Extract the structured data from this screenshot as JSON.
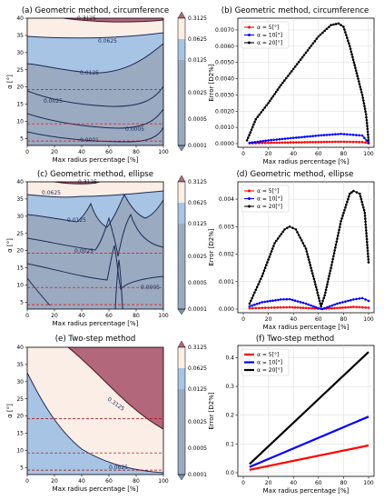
{
  "figure": {
    "panels": [
      {
        "id": "a",
        "title": "(a) Geometric method, circumference",
        "xlabel": "Max radius percentage [%]",
        "ylabel": "α [°]"
      },
      {
        "id": "b",
        "title": "(b) Geometric method, circumference",
        "xlabel": "Max radius percentage [%]",
        "ylabel": "Error [D2%]"
      },
      {
        "id": "c",
        "title": "(c) Geometric method, ellipse",
        "xlabel": "Max radius percentage [%]",
        "ylabel": "α [°]"
      },
      {
        "id": "d",
        "title": "(d) Geometric method, ellipse",
        "xlabel": "Max radius percentage [%]",
        "ylabel": "Error [D2%]"
      },
      {
        "id": "e",
        "title": "(e) Two-step method",
        "xlabel": "Max radius percentage [%]",
        "ylabel": "α [°]"
      },
      {
        "id": "f",
        "title": "(f) Two-step method",
        "xlabel": "Max radius percentage [%]",
        "ylabel": "Error [D2%]"
      }
    ]
  },
  "chart_data": [
    {
      "panel": "a",
      "type": "contour",
      "x_range": [
        0,
        100
      ],
      "y_range": [
        3,
        40
      ],
      "xticks": [
        0,
        20,
        40,
        60,
        80,
        100
      ],
      "yticks": [
        5,
        10,
        15,
        20,
        25,
        30,
        35,
        40
      ],
      "levels": [
        0.0001,
        0.0005,
        0.0025,
        0.0125,
        0.0625,
        0.3125
      ],
      "colorbar_ticks": [
        "0.3125",
        "0.0625",
        "0.0125",
        "0.0025",
        "0.0005",
        "0.0001"
      ],
      "contour_labels": [
        "0.3125",
        "0.0625",
        "0.0125",
        "0.0025",
        "0.0005",
        "0.0001"
      ],
      "reference_lines_alpha": [
        5,
        10,
        20
      ]
    },
    {
      "panel": "b",
      "type": "line",
      "x_range": [
        0,
        100
      ],
      "ylim": [
        0,
        0.0075
      ],
      "xticks": [
        0,
        20,
        40,
        60,
        80,
        100
      ],
      "yticks": [
        "0.0000",
        "0.0010",
        "0.0020",
        "0.0030",
        "0.0040",
        "0.0050",
        "0.0060",
        "0.0070"
      ],
      "ytick_values": [
        0,
        0.001,
        0.002,
        0.003,
        0.004,
        0.005,
        0.006,
        0.007
      ],
      "legend_position": "upper-left",
      "grid": true,
      "series": [
        {
          "name": "α = 5[°]",
          "color": "#ff0000",
          "x": [
            5,
            20,
            40,
            60,
            78,
            95,
            100
          ],
          "y": [
            2e-05,
            5e-05,
            8e-05,
            0.0001,
            0.00012,
            0.0001,
            2e-05
          ]
        },
        {
          "name": "α = 10[°]",
          "color": "#0000ff",
          "x": [
            5,
            20,
            40,
            60,
            78,
            95,
            100
          ],
          "y": [
            5e-05,
            0.0002,
            0.00035,
            0.0005,
            0.0006,
            0.0005,
            5e-05
          ]
        },
        {
          "name": "α = 20[°]",
          "color": "#000000",
          "x": [
            3,
            10,
            20,
            30,
            40,
            50,
            60,
            70,
            76,
            80,
            85,
            90,
            95,
            98,
            100
          ],
          "y": [
            0.0002,
            0.0015,
            0.0025,
            0.0036,
            0.0046,
            0.0056,
            0.0066,
            0.0073,
            0.0074,
            0.0072,
            0.006,
            0.0045,
            0.003,
            0.0018,
            0.0002
          ]
        }
      ]
    },
    {
      "panel": "c",
      "type": "contour",
      "x_range": [
        0,
        100
      ],
      "y_range": [
        3,
        40
      ],
      "xticks": [
        0,
        20,
        40,
        60,
        80,
        100
      ],
      "yticks": [
        5,
        10,
        15,
        20,
        25,
        30,
        35,
        40
      ],
      "levels": [
        0.0001,
        0.0005,
        0.0025,
        0.0125,
        0.0625,
        0.3125
      ],
      "colorbar_ticks": [
        "0.3125",
        "0.0625",
        "0.0125",
        "0.0025",
        "0.0005",
        "0.0001"
      ],
      "contour_labels": [
        "0.3125",
        "0.0625",
        "0.0125",
        "0.0025",
        "0.0005"
      ],
      "reference_lines_alpha": [
        5,
        10,
        20
      ]
    },
    {
      "panel": "d",
      "type": "line",
      "x_range": [
        0,
        100
      ],
      "ylim": [
        0,
        0.0045
      ],
      "xticks": [
        0,
        20,
        40,
        60,
        80,
        100
      ],
      "yticks": [
        "0.000",
        "0.001",
        "0.002",
        "0.003",
        "0.004"
      ],
      "ytick_values": [
        0,
        0.001,
        0.002,
        0.003,
        0.004
      ],
      "legend_position": "upper-left",
      "grid": true,
      "series": [
        {
          "name": "α = 5[°]",
          "color": "#ff0000",
          "x": [
            5,
            20,
            37,
            50,
            62,
            75,
            88,
            100
          ],
          "y": [
            3e-05,
            5e-05,
            7e-05,
            4e-05,
            1e-05,
            4e-05,
            8e-05,
            5e-05
          ]
        },
        {
          "name": "α = 10[°]",
          "color": "#0000ff",
          "x": [
            5,
            15,
            30,
            37,
            50,
            60,
            63,
            75,
            88,
            95,
            100
          ],
          "y": [
            0.0001,
            0.00025,
            0.00035,
            0.00036,
            0.0002,
            3e-05,
            0.0,
            0.0002,
            0.00035,
            0.0004,
            0.0003
          ]
        },
        {
          "name": "α = 20[°]",
          "color": "#000000",
          "x": [
            5,
            15,
            25,
            33,
            37,
            42,
            50,
            57,
            62,
            65,
            70,
            78,
            85,
            88,
            93,
            97,
            100
          ],
          "y": [
            0.0002,
            0.0012,
            0.0024,
            0.0029,
            0.003,
            0.0029,
            0.0022,
            0.001,
            0.0001,
            0.0005,
            0.0015,
            0.0032,
            0.0042,
            0.0043,
            0.0042,
            0.0035,
            0.0017
          ]
        }
      ]
    },
    {
      "panel": "e",
      "type": "contour",
      "x_range": [
        0,
        100
      ],
      "y_range": [
        3,
        40
      ],
      "xticks": [
        0,
        20,
        40,
        60,
        80,
        100
      ],
      "yticks": [
        5,
        10,
        15,
        20,
        25,
        30,
        35,
        40
      ],
      "levels": [
        0.0001,
        0.0005,
        0.0025,
        0.0125,
        0.0625,
        0.3125
      ],
      "colorbar_ticks": [
        "0.3125",
        "0.0625",
        "0.0125",
        "0.0025",
        "0.0005",
        "0.0001"
      ],
      "contour_labels": [
        "0.3125",
        "0.0625"
      ],
      "reference_lines_alpha": [
        5,
        10,
        20
      ]
    },
    {
      "panel": "f",
      "type": "line",
      "x_range": [
        0,
        100
      ],
      "ylim": [
        0,
        0.43
      ],
      "xticks": [
        0,
        20,
        40,
        60,
        80,
        100
      ],
      "yticks": [
        "0.0",
        "0.1",
        "0.2",
        "0.3",
        "0.4"
      ],
      "ytick_values": [
        0,
        0.1,
        0.2,
        0.3,
        0.4
      ],
      "legend_position": "upper-left",
      "grid": true,
      "series": [
        {
          "name": "α = 5[°]",
          "color": "#ff0000",
          "x": [
            5,
            100
          ],
          "y": [
            0.01,
            0.095
          ]
        },
        {
          "name": "α = 10[°]",
          "color": "#0000ff",
          "x": [
            5,
            100
          ],
          "y": [
            0.02,
            0.195
          ]
        },
        {
          "name": "α = 20[°]",
          "color": "#000000",
          "x": [
            5,
            100
          ],
          "y": [
            0.03,
            0.42
          ]
        }
      ]
    }
  ]
}
